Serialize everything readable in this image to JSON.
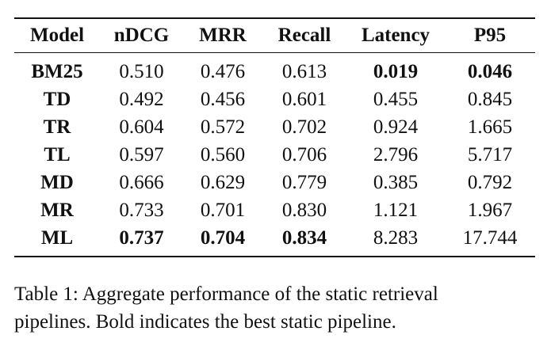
{
  "table": {
    "headers": [
      "Model",
      "nDCG",
      "MRR",
      "Recall",
      "Latency",
      "P95"
    ],
    "rows": [
      {
        "cells": [
          "BM25",
          "0.510",
          "0.476",
          "0.613",
          "0.019",
          "0.046"
        ],
        "bold": [
          true,
          false,
          false,
          false,
          true,
          true
        ]
      },
      {
        "cells": [
          "TD",
          "0.492",
          "0.456",
          "0.601",
          "0.455",
          "0.845"
        ],
        "bold": [
          true,
          false,
          false,
          false,
          false,
          false
        ]
      },
      {
        "cells": [
          "TR",
          "0.604",
          "0.572",
          "0.702",
          "0.924",
          "1.665"
        ],
        "bold": [
          true,
          false,
          false,
          false,
          false,
          false
        ]
      },
      {
        "cells": [
          "TL",
          "0.597",
          "0.560",
          "0.706",
          "2.796",
          "5.717"
        ],
        "bold": [
          true,
          false,
          false,
          false,
          false,
          false
        ]
      },
      {
        "cells": [
          "MD",
          "0.666",
          "0.629",
          "0.779",
          "0.385",
          "0.792"
        ],
        "bold": [
          true,
          false,
          false,
          false,
          false,
          false
        ]
      },
      {
        "cells": [
          "MR",
          "0.733",
          "0.701",
          "0.830",
          "1.121",
          "1.967"
        ],
        "bold": [
          true,
          false,
          false,
          false,
          false,
          false
        ]
      },
      {
        "cells": [
          "ML",
          "0.737",
          "0.704",
          "0.834",
          "8.283",
          "17.744"
        ],
        "bold": [
          true,
          true,
          true,
          true,
          false,
          false
        ]
      }
    ]
  },
  "caption": {
    "line1": "Table 1: Aggregate performance of the static retrieval",
    "line2": "pipelines. Bold indicates the best static pipeline."
  }
}
